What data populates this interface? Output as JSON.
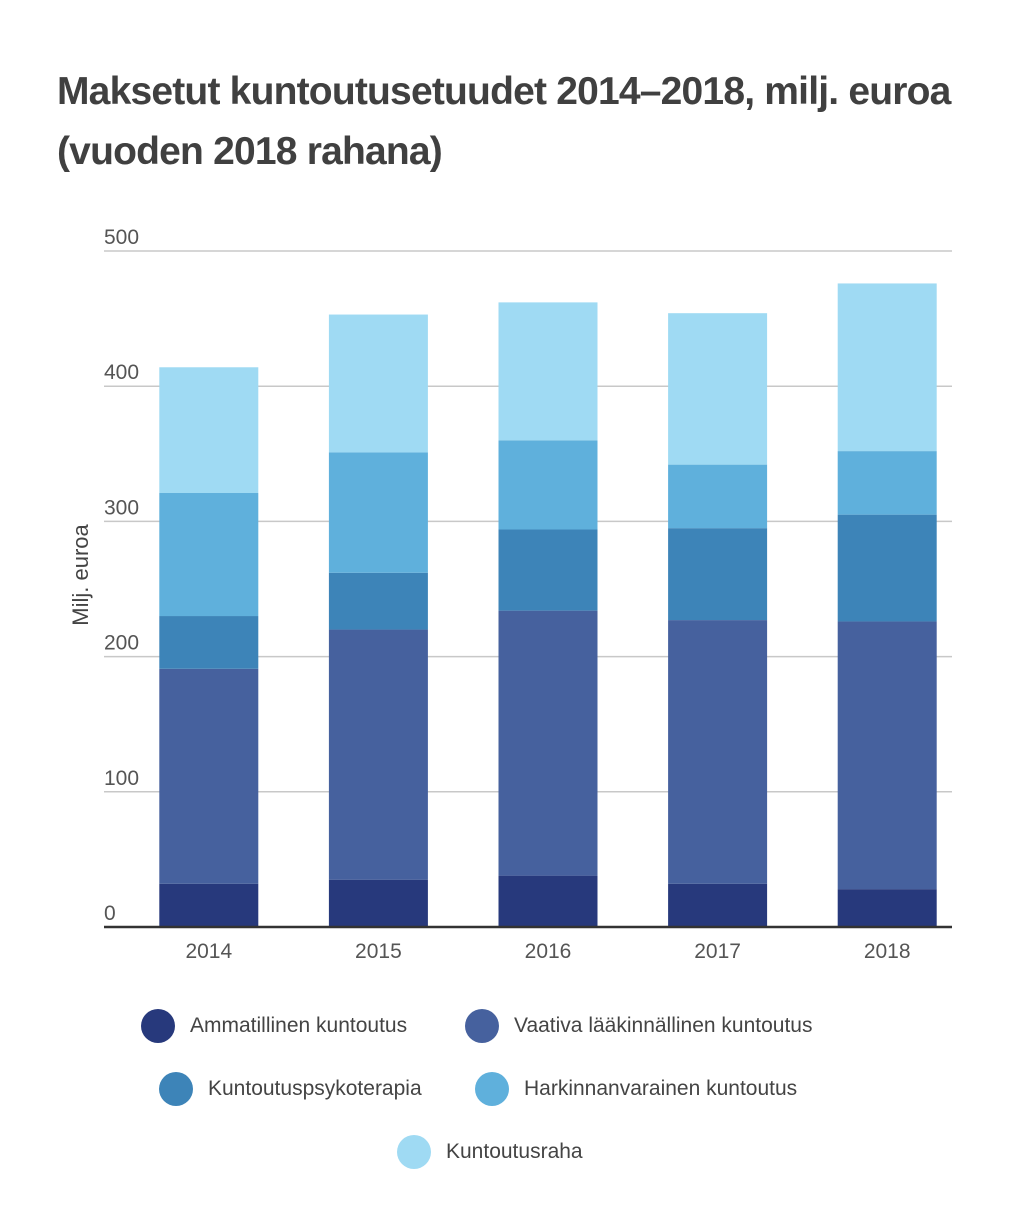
{
  "title": "Maksetut kuntoutusetuudet 2014–2018, milj. euroa (vuoden 2018 rahana)",
  "chart_data": {
    "type": "bar",
    "stacked": true,
    "title": "Maksetut kuntoutusetuudet 2014–2018, milj. euroa (vuoden 2018 rahana)",
    "xlabel": "",
    "ylabel": "Milj. euroa",
    "ylim": [
      0,
      500
    ],
    "yticks": [
      0,
      100,
      200,
      300,
      400,
      500
    ],
    "categories": [
      "2014",
      "2015",
      "2016",
      "2017",
      "2018"
    ],
    "series": [
      {
        "name": "Ammatillinen kuntoutus",
        "color": "#27397c",
        "values": [
          32,
          35,
          38,
          32,
          28
        ]
      },
      {
        "name": "Vaativa lääkinnällinen kuntoutus",
        "color": "#46619e",
        "values": [
          159,
          185,
          196,
          195,
          198
        ]
      },
      {
        "name": "Kuntoutuspsykoterapia",
        "color": "#3d84b8",
        "values": [
          39,
          42,
          60,
          68,
          79
        ]
      },
      {
        "name": "Harkinnanvarainen kuntoutus",
        "color": "#5fb0dc",
        "values": [
          91,
          89,
          66,
          47,
          47
        ]
      },
      {
        "name": "Kuntoutusraha",
        "color": "#9fdaf3",
        "values": [
          93,
          102,
          102,
          112,
          124
        ]
      }
    ],
    "grid": true,
    "legend_position": "bottom"
  }
}
